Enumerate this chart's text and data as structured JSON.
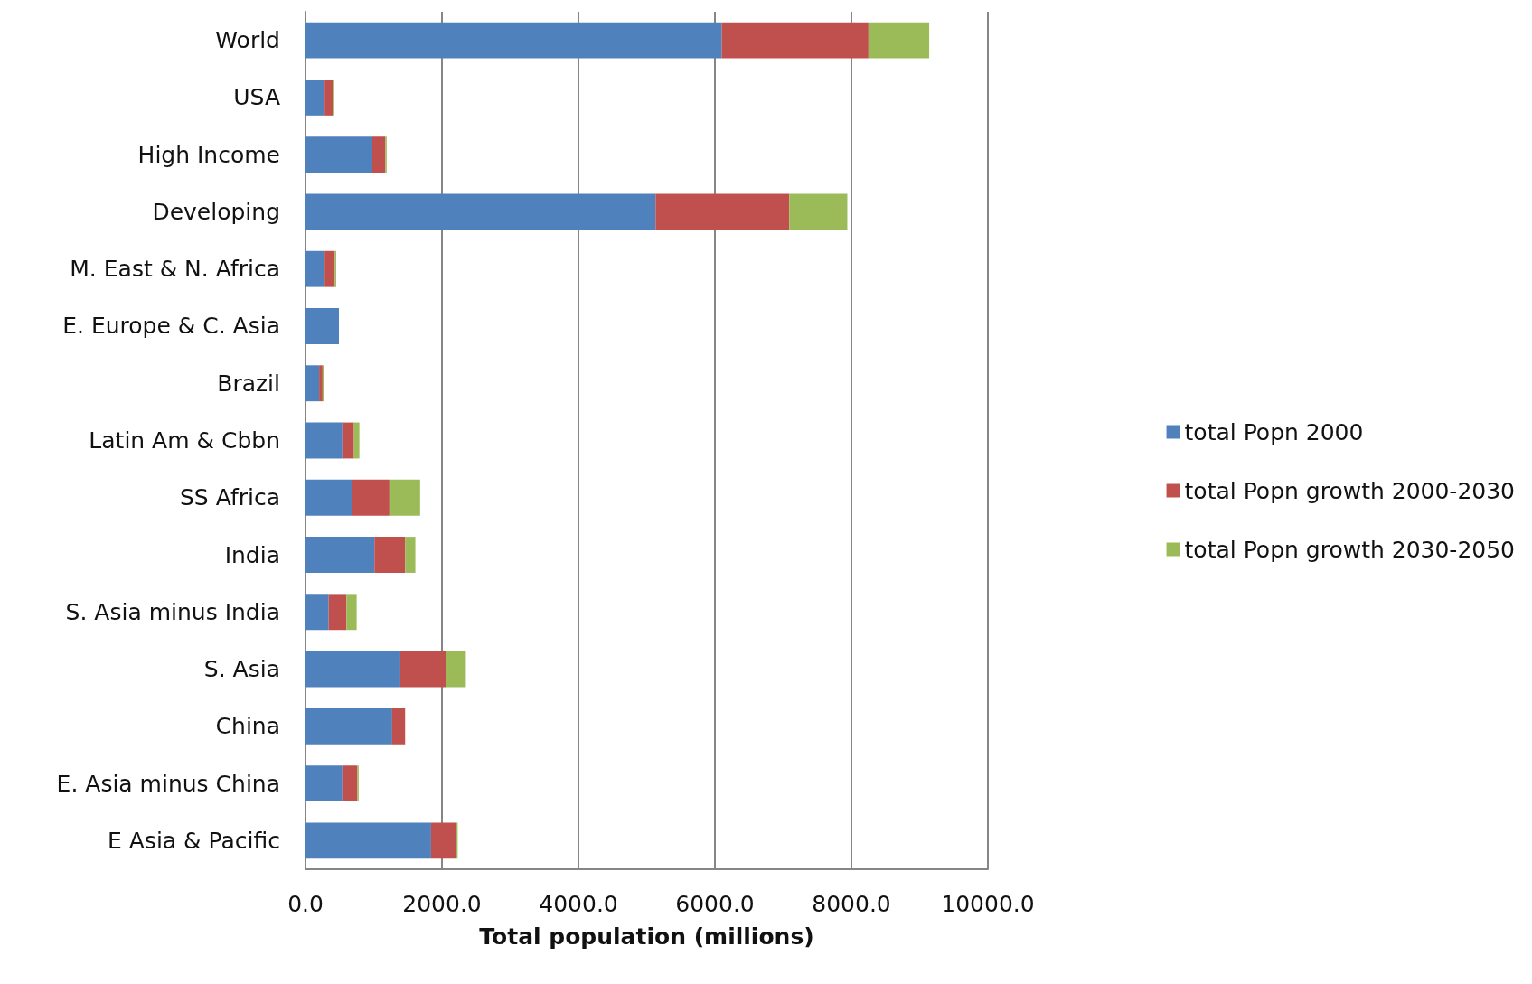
{
  "chart_data": {
    "type": "bar",
    "orientation": "horizontal",
    "stacked": true,
    "categories": [
      "World",
      "USA",
      "High Income",
      "Developing",
      "M. East & N. Africa",
      "E. Europe & C. Asia",
      "Brazil",
      "Latin Am & Cbbn",
      "SS Africa",
      "India",
      "S. Asia minus India",
      "S. Asia",
      "China",
      "E. Asia minus China",
      "E Asia & Pacific"
    ],
    "series": [
      {
        "name": "total Popn 2000",
        "color": "#4f81bd",
        "values": [
          6100,
          280,
          980,
          5130,
          280,
          490,
          200,
          540,
          680,
          1010,
          340,
          1390,
          1270,
          540,
          1840
        ]
      },
      {
        "name": "total Popn growth 2000-2030",
        "color": "#c0504d",
        "values": [
          2150,
          120,
          190,
          1960,
          150,
          null,
          50,
          170,
          550,
          450,
          260,
          670,
          190,
          220,
          370
        ]
      },
      {
        "name": "total Popn growth 2030-2050",
        "color": "#9bbb59",
        "values": [
          890,
          10,
          20,
          850,
          20,
          null,
          20,
          80,
          450,
          150,
          150,
          290,
          null,
          20,
          20
        ]
      }
    ],
    "xlim": [
      0,
      10000
    ],
    "xticks": [
      {
        "value": 0,
        "label": "0.0"
      },
      {
        "value": 2000,
        "label": "2000.0"
      },
      {
        "value": 4000,
        "label": "4000.0"
      },
      {
        "value": 6000,
        "label": "6000.0"
      },
      {
        "value": 8000,
        "label": "8000.0"
      },
      {
        "value": 10000,
        "label": "10000.0"
      }
    ],
    "xlabel": "Total population (millions)",
    "grid": "x",
    "legend": "right"
  }
}
